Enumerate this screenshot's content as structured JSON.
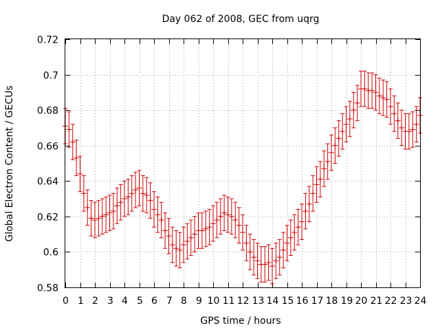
{
  "chart_data": {
    "type": "scatter",
    "title": "Day 062 of 2008, GEC from uqrg",
    "xlabel": "GPS time / hours",
    "ylabel": "Global Electron Content / GECUs",
    "xlim": [
      0,
      24
    ],
    "ylim": [
      0.58,
      0.72
    ],
    "xticks": [
      "0",
      "1",
      "2",
      "3",
      "4",
      "5",
      "6",
      "7",
      "8",
      "9",
      "10",
      "11",
      "12",
      "13",
      "14",
      "15",
      "16",
      "17",
      "18",
      "19",
      "20",
      "21",
      "22",
      "23",
      "24"
    ],
    "yticks": [
      "0.58",
      "0.6",
      "0.62",
      "0.64",
      "0.66",
      "0.68",
      "0.7",
      "0.72"
    ],
    "grid": true,
    "legend": "none",
    "error_bar_halfwidth": 0.01,
    "series": [
      {
        "color": "#cc0000",
        "x": [
          0.0,
          0.25,
          0.5,
          0.75,
          1.0,
          1.25,
          1.5,
          1.75,
          2.0,
          2.25,
          2.5,
          2.75,
          3.0,
          3.25,
          3.5,
          3.75,
          4.0,
          4.25,
          4.5,
          4.75,
          5.0,
          5.25,
          5.5,
          5.75,
          6.0,
          6.25,
          6.5,
          6.75,
          7.0,
          7.25,
          7.5,
          7.75,
          8.0,
          8.25,
          8.5,
          8.75,
          9.0,
          9.25,
          9.5,
          9.75,
          10.0,
          10.25,
          10.5,
          10.75,
          11.0,
          11.25,
          11.5,
          11.75,
          12.0,
          12.25,
          12.5,
          12.75,
          13.0,
          13.25,
          13.5,
          13.75,
          14.0,
          14.25,
          14.5,
          14.75,
          15.0,
          15.25,
          15.5,
          15.75,
          16.0,
          16.25,
          16.5,
          16.75,
          17.0,
          17.25,
          17.5,
          17.75,
          18.0,
          18.25,
          18.5,
          18.75,
          19.0,
          19.25,
          19.5,
          19.75,
          20.0,
          20.25,
          20.5,
          20.75,
          21.0,
          21.25,
          21.5,
          21.75,
          22.0,
          22.25,
          22.5,
          22.75,
          23.0,
          23.25,
          23.5,
          23.75,
          24.0
        ],
        "y": [
          0.671,
          0.669,
          0.662,
          0.653,
          0.644,
          0.633,
          0.625,
          0.619,
          0.618,
          0.619,
          0.62,
          0.621,
          0.622,
          0.623,
          0.626,
          0.628,
          0.63,
          0.631,
          0.633,
          0.635,
          0.636,
          0.633,
          0.632,
          0.629,
          0.624,
          0.621,
          0.618,
          0.612,
          0.609,
          0.604,
          0.602,
          0.601,
          0.604,
          0.606,
          0.608,
          0.61,
          0.612,
          0.612,
          0.613,
          0.614,
          0.616,
          0.618,
          0.62,
          0.622,
          0.621,
          0.62,
          0.618,
          0.615,
          0.611,
          0.605,
          0.6,
          0.597,
          0.595,
          0.593,
          0.593,
          0.594,
          0.592,
          0.595,
          0.597,
          0.601,
          0.605,
          0.608,
          0.611,
          0.614,
          0.617,
          0.623,
          0.627,
          0.633,
          0.638,
          0.641,
          0.647,
          0.651,
          0.656,
          0.66,
          0.664,
          0.668,
          0.672,
          0.675,
          0.68,
          0.684,
          0.692,
          0.692,
          0.691,
          0.691,
          0.69,
          0.688,
          0.687,
          0.686,
          0.682,
          0.678,
          0.674,
          0.67,
          0.668,
          0.668,
          0.669,
          0.672,
          0.677
        ]
      }
    ]
  }
}
